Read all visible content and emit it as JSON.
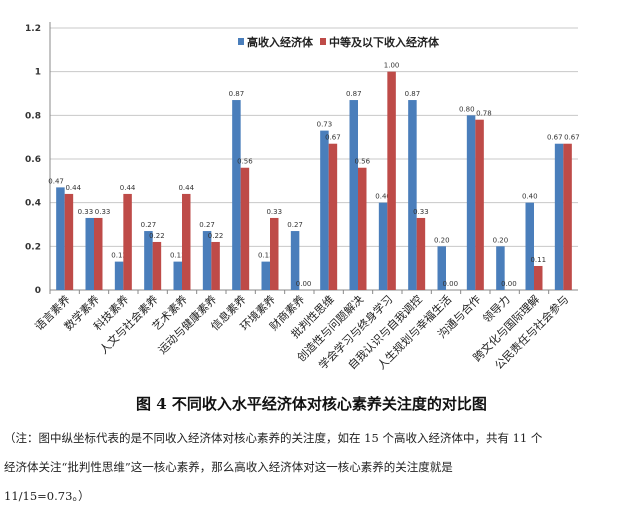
{
  "chart_data": {
    "type": "bar",
    "categories": [
      "语言素养",
      "数学素养",
      "科技素养",
      "人文与社会素养",
      "艺术素养",
      "运动与健康素养",
      "信息素养",
      "环境素养",
      "财商素养",
      "批判性思维",
      "创造性与问题解决",
      "学会学习与终身学习",
      "自我认识与自我调控",
      "人生规划与幸福生活",
      "沟通与合作",
      "领导力",
      "跨文化与国际理解",
      "公民责任与社会参与"
    ],
    "series": [
      {
        "name": "高收入经济体",
        "color": "#4a7ebb",
        "values": [
          0.47,
          0.33,
          0.13,
          0.27,
          0.13,
          0.27,
          0.87,
          0.13,
          0.27,
          0.73,
          0.87,
          0.4,
          0.87,
          0.2,
          0.8,
          0.2,
          0.4,
          0.67
        ]
      },
      {
        "name": "中等及以下收入经济体",
        "color": "#be4b48",
        "values": [
          0.44,
          0.33,
          0.44,
          0.22,
          0.44,
          0.22,
          0.56,
          0.33,
          0.0,
          0.67,
          0.56,
          1.0,
          0.33,
          0.0,
          0.78,
          0.0,
          0.11,
          0.67
        ]
      }
    ],
    "ylim": [
      0,
      1.2
    ],
    "yticks": [
      "0",
      "0.2",
      "0.4",
      "0.6",
      "0.8",
      "1",
      "1.2"
    ],
    "grid": true,
    "legend": "top-center"
  },
  "caption": "图 4 不同收入水平经济体对核心素养关注度的对比图",
  "note": [
    "（注：图中纵坐标代表的是不同收入经济体对核心素养的关注度，如在 15 个高收入经济体中，共有 11 个",
    "经济体关注“批判性思维”这一核心素养，那么高收入经济体对这一核心素养的关注度就是",
    "11/15=0.73。）"
  ]
}
